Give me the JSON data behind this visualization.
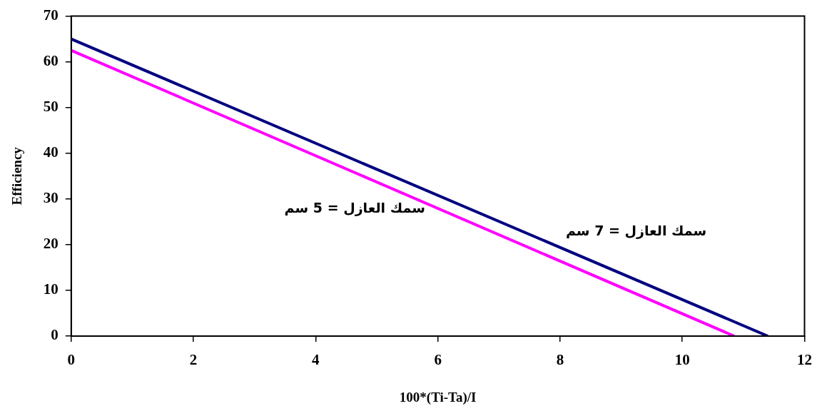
{
  "chart_data": {
    "type": "line",
    "xlabel": "100*(Ti-Ta)/I",
    "ylabel": "Efficiency",
    "xlim": [
      0,
      12
    ],
    "xticks": [
      0,
      2,
      4,
      6,
      8,
      10,
      12
    ],
    "ylim": [
      0,
      70
    ],
    "yticks": [
      0,
      10,
      20,
      30,
      40,
      50,
      60,
      70
    ],
    "grid": false,
    "legend": false,
    "marker": "none",
    "line_style": "solid",
    "series": [
      {
        "name": "سمك العازل = 7 سم",
        "color": "#000080",
        "x": [
          0,
          11.4
        ],
        "values": [
          65,
          0
        ]
      },
      {
        "name": "سمك العازل = 5 سم",
        "color": "#ff00ff",
        "x": [
          0,
          10.85
        ],
        "values": [
          62.5,
          0
        ]
      }
    ]
  }
}
